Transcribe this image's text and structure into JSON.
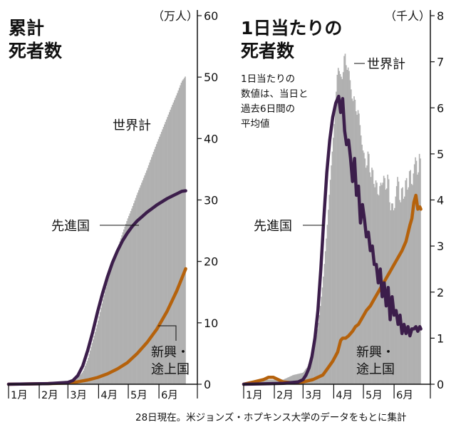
{
  "source": "28日現在。米ジョンズ・ホプキンス大学のデータをもとに集計",
  "colors": {
    "world": "#b0b0b0",
    "developed": "#3c1e4b",
    "developing": "#b5620c"
  },
  "chart_data": [
    {
      "type": "area",
      "title_lines": [
        "累計",
        "死者数"
      ],
      "unit": "（万人）",
      "ylim": [
        0,
        60
      ],
      "yticks": [
        "0",
        "10",
        "20",
        "30",
        "40",
        "50",
        "60"
      ],
      "xtick_labels": [
        "1月",
        "2月",
        "3月",
        "4月",
        "5月",
        "6月"
      ],
      "x_unit": "days since Jan 1 2020",
      "xlim": [
        0,
        180
      ],
      "series": [
        {
          "name": "世界計",
          "style": "area",
          "x": [
            0,
            40,
            60,
            68,
            75,
            80,
            85,
            90,
            95,
            100,
            105,
            110,
            115,
            120,
            125,
            130,
            135,
            140,
            145,
            150,
            155,
            160,
            165,
            170,
            175,
            179
          ],
          "y": [
            0,
            0.1,
            0.3,
            0.7,
            2.0,
            4.0,
            7.0,
            10.0,
            13.5,
            16.8,
            19.5,
            22.0,
            24.5,
            26.8,
            28.8,
            31.0,
            33.0,
            35.0,
            37.2,
            39.3,
            41.3,
            43.3,
            45.3,
            47.2,
            49.3,
            50.2
          ]
        },
        {
          "name": "先進国",
          "style": "line",
          "x": [
            0,
            40,
            60,
            65,
            70,
            75,
            80,
            85,
            90,
            95,
            100,
            105,
            110,
            115,
            120,
            125,
            130,
            135,
            140,
            145,
            150,
            155,
            160,
            165,
            170,
            175,
            179
          ],
          "y": [
            0,
            0.1,
            0.3,
            0.6,
            1.4,
            3.0,
            5.5,
            8.5,
            11.8,
            14.8,
            17.5,
            19.8,
            21.7,
            23.3,
            24.6,
            25.7,
            26.6,
            27.3,
            28.0,
            28.6,
            29.2,
            29.7,
            30.2,
            30.6,
            31.0,
            31.4,
            31.5
          ]
        },
        {
          "name": "新興・途上国",
          "style": "line",
          "x": [
            0,
            40,
            60,
            70,
            80,
            90,
            100,
            110,
            120,
            130,
            140,
            150,
            160,
            170,
            179
          ],
          "y": [
            0,
            0.1,
            0.2,
            0.4,
            0.7,
            1.1,
            1.7,
            2.5,
            3.5,
            5.0,
            6.8,
            9.0,
            11.8,
            15.2,
            18.8
          ]
        }
      ],
      "labels": {
        "world": "世界計",
        "developed": "先進国",
        "developing": [
          "新興・",
          "途上国"
        ]
      }
    },
    {
      "type": "area",
      "title_lines": [
        "1日当たりの",
        "死者数"
      ],
      "unit": "（千人）",
      "ylim": [
        0,
        8
      ],
      "yticks": [
        "0",
        "1",
        "2",
        "3",
        "4",
        "5",
        "6",
        "7",
        "8"
      ],
      "xtick_labels": [
        "1月",
        "2月",
        "3月",
        "4月",
        "5月",
        "6月"
      ],
      "x_unit": "days since Jan 1 2020",
      "xlim": [
        0,
        180
      ],
      "note": [
        "1日当たりの",
        "数値は、当日と",
        "過去6日間の",
        "平均値"
      ],
      "series": [
        {
          "name": "世界計",
          "style": "area",
          "x": [
            0,
            20,
            40,
            50,
            60,
            65,
            70,
            73,
            76,
            80,
            84,
            88,
            92,
            95,
            98,
            100,
            102,
            104,
            106,
            108,
            110,
            112,
            114,
            116,
            118,
            120,
            122,
            124,
            126,
            128,
            130,
            132,
            134,
            136,
            138,
            140,
            142,
            144,
            146,
            148,
            150,
            152,
            154,
            156,
            158,
            160,
            162,
            164,
            166,
            168,
            170,
            172,
            174,
            176,
            178,
            179
          ],
          "y": [
            0,
            0.1,
            0.1,
            0.2,
            0.25,
            0.4,
            0.7,
            1.0,
            1.4,
            2.2,
            3.3,
            4.6,
            5.8,
            6.9,
            6.7,
            6.6,
            7.3,
            6.8,
            6.9,
            6.5,
            6.1,
            6.3,
            5.8,
            6.0,
            5.5,
            5.1,
            5.0,
            4.6,
            5.2,
            4.4,
            4.8,
            4.2,
            4.5,
            4.0,
            4.4,
            4.3,
            4.6,
            4.1,
            4.7,
            3.7,
            4.0,
            3.7,
            4.2,
            4.6,
            3.8,
            4.4,
            3.9,
            4.6,
            4.1,
            4.8,
            4.2,
            4.7,
            5.0,
            4.4,
            5.2,
            4.6
          ]
        },
        {
          "name": "先進国",
          "style": "line",
          "x": [
            0,
            40,
            55,
            60,
            63,
            66,
            69,
            72,
            75,
            78,
            81,
            84,
            87,
            90,
            93,
            96,
            98,
            100,
            102,
            104,
            106,
            108,
            110,
            112,
            114,
            116,
            118,
            120,
            122,
            124,
            126,
            128,
            130,
            132,
            134,
            136,
            138,
            140,
            142,
            144,
            146,
            148,
            150,
            152,
            154,
            156,
            158,
            160,
            162,
            164,
            166,
            168,
            170,
            172,
            174,
            176,
            178,
            179
          ],
          "y": [
            0,
            0.02,
            0.05,
            0.1,
            0.2,
            0.35,
            0.6,
            1.0,
            1.6,
            2.5,
            3.6,
            4.6,
            5.3,
            5.8,
            6.1,
            6.25,
            5.9,
            6.2,
            5.5,
            5.2,
            5.3,
            4.9,
            4.4,
            4.9,
            4.1,
            4.3,
            3.5,
            3.9,
            3.6,
            3.2,
            3.3,
            2.9,
            3.0,
            2.6,
            2.6,
            2.2,
            2.5,
            1.9,
            2.2,
            1.7,
            2.1,
            1.4,
            1.9,
            1.5,
            1.6,
            1.3,
            1.5,
            1.1,
            1.3,
            1.1,
            1.25,
            1.05,
            1.2,
            1.2,
            1.25,
            1.15,
            1.25,
            1.2
          ]
        },
        {
          "name": "新興・途上国",
          "style": "line",
          "x": [
            0,
            10,
            20,
            25,
            30,
            35,
            40,
            50,
            60,
            70,
            80,
            85,
            90,
            95,
            98,
            100,
            103,
            106,
            110,
            113,
            116,
            120,
            124,
            128,
            132,
            136,
            140,
            144,
            148,
            152,
            156,
            160,
            164,
            168,
            170,
            172,
            174,
            176,
            178,
            179
          ],
          "y": [
            0,
            0.05,
            0.1,
            0.15,
            0.15,
            0.1,
            0.05,
            0.03,
            0.05,
            0.1,
            0.2,
            0.35,
            0.5,
            0.7,
            0.95,
            1.0,
            1.0,
            1.05,
            1.15,
            1.25,
            1.3,
            1.45,
            1.6,
            1.7,
            1.85,
            2.0,
            2.15,
            2.3,
            2.45,
            2.6,
            2.75,
            2.9,
            3.1,
            3.45,
            3.6,
            3.95,
            4.1,
            3.8,
            3.85,
            3.8
          ]
        }
      ],
      "labels": {
        "world": "世界計",
        "developed": "先進国",
        "developing": [
          "新興・",
          "途上国"
        ]
      }
    }
  ]
}
